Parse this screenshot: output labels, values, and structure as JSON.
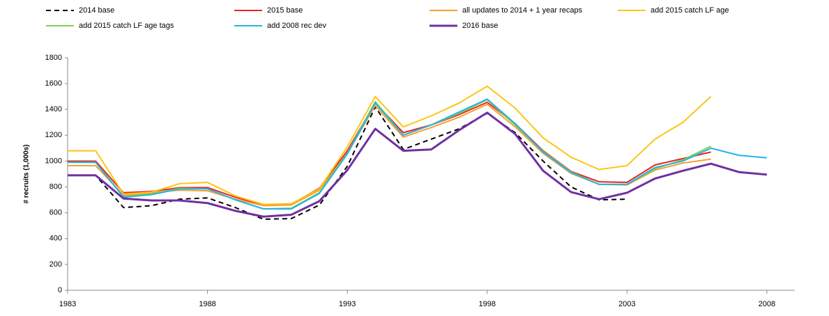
{
  "chart_data": {
    "type": "line",
    "y_label": "# recruits (1,000s)",
    "x": [
      1983,
      1984,
      1985,
      1986,
      1987,
      1988,
      1989,
      1990,
      1991,
      1992,
      1993,
      1994,
      1995,
      1996,
      1997,
      1998,
      1999,
      2000,
      2001,
      2002,
      2003,
      2004,
      2005,
      2006,
      2007,
      2008
    ],
    "xlim": [
      1983,
      2009
    ],
    "xticks": [
      1983,
      1988,
      1993,
      1998,
      2003,
      2008
    ],
    "ylim": [
      0,
      1800
    ],
    "yticks": [
      0,
      200,
      400,
      600,
      800,
      1000,
      1200,
      1400,
      1600,
      1800
    ],
    "grid": false,
    "legend": "top",
    "series": [
      {
        "name": "2014 base",
        "color": "#000000",
        "dashed": true,
        "values": [
          890,
          890,
          640,
          655,
          705,
          715,
          640,
          550,
          555,
          660,
          960,
          1420,
          1090,
          1170,
          1250,
          1370,
          1220,
          1000,
          800,
          700,
          705,
          null,
          null,
          null,
          null,
          null
        ]
      },
      {
        "name": "2015 base",
        "color": "#e8251f",
        "values": [
          1000,
          1000,
          755,
          765,
          795,
          795,
          720,
          660,
          665,
          790,
          1080,
          1450,
          1220,
          1280,
          1360,
          1455,
          1290,
          1080,
          920,
          840,
          835,
          970,
          1020,
          1070,
          null,
          null
        ]
      },
      {
        "name": "all updates to 2014 + 1 year recaps",
        "color": "#f7a030",
        "values": [
          965,
          965,
          735,
          755,
          775,
          770,
          705,
          655,
          660,
          775,
          1060,
          1430,
          1185,
          1260,
          1340,
          1440,
          1265,
          1060,
          905,
          820,
          815,
          930,
          985,
          1015,
          null,
          null
        ]
      },
      {
        "name": "add 2015 catch LF age",
        "color": "#fcc514",
        "values": [
          1080,
          1080,
          745,
          760,
          825,
          835,
          730,
          665,
          670,
          785,
          1110,
          1500,
          1265,
          1350,
          1450,
          1580,
          1410,
          1180,
          1030,
          935,
          965,
          1170,
          1300,
          1500,
          null,
          null
        ]
      },
      {
        "name": "add 2015 catch LF age tags",
        "color": "#7ed04a",
        "values": [
          990,
          990,
          725,
          745,
          790,
          785,
          700,
          630,
          635,
          755,
          1060,
          1460,
          1200,
          1280,
          1370,
          1475,
          1280,
          1075,
          915,
          820,
          820,
          940,
          1010,
          1115,
          null,
          null
        ]
      },
      {
        "name": "add 2008 rec dev",
        "color": "#22b4e8",
        "values": [
          990,
          990,
          720,
          740,
          785,
          785,
          700,
          630,
          630,
          750,
          1055,
          1450,
          1200,
          1280,
          1380,
          1480,
          1290,
          1070,
          910,
          820,
          820,
          950,
          1000,
          1100,
          1045,
          1025
        ]
      },
      {
        "name": "2016 base",
        "color": "#7030a0",
        "width": 3,
        "values": [
          890,
          890,
          710,
          695,
          695,
          675,
          615,
          570,
          585,
          690,
          930,
          1250,
          1080,
          1090,
          1240,
          1375,
          1210,
          925,
          760,
          705,
          755,
          865,
          925,
          980,
          915,
          895
        ]
      }
    ]
  }
}
